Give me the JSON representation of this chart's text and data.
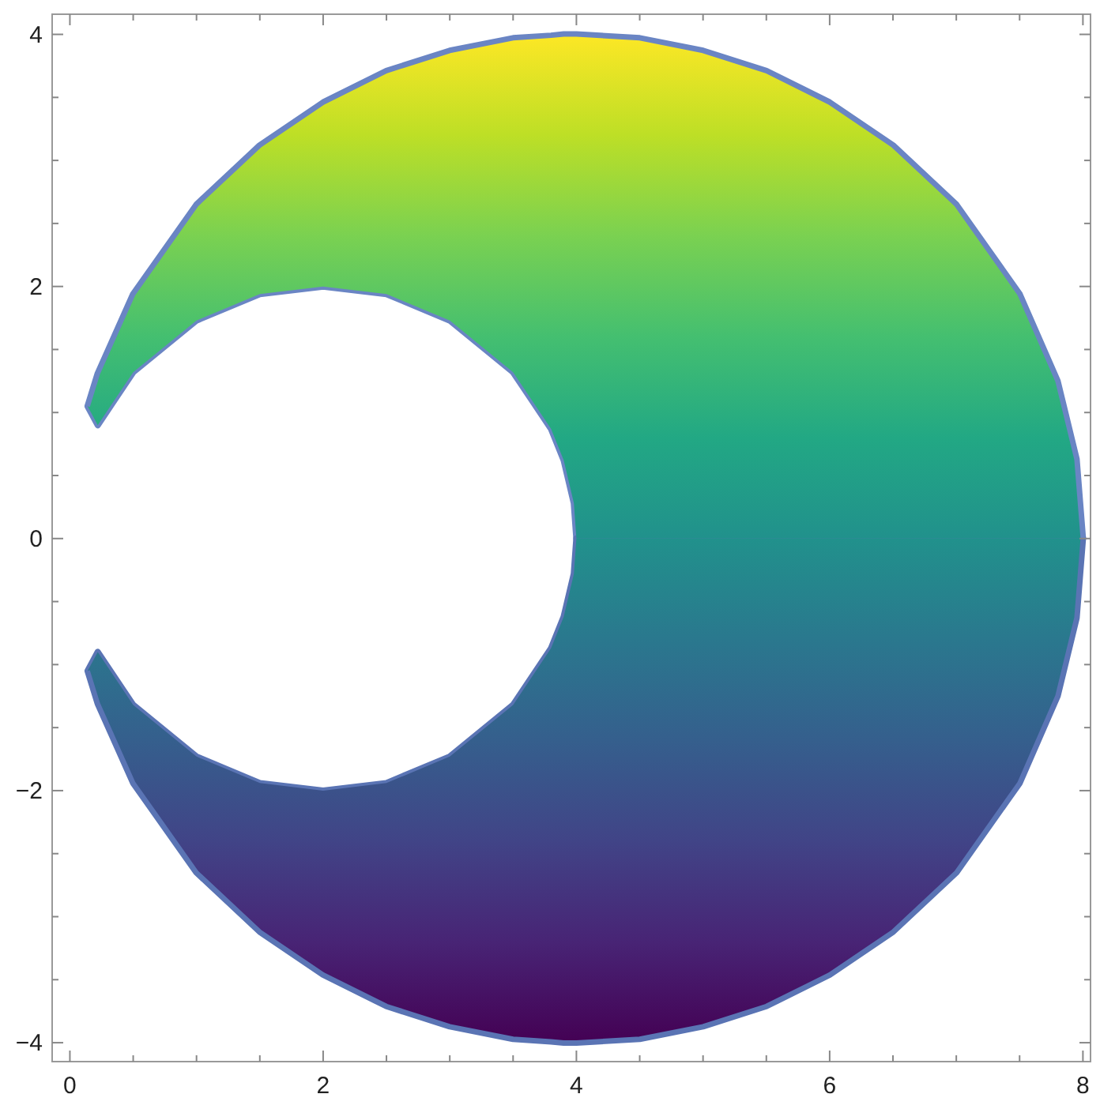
{
  "chart_data": {
    "type": "line",
    "x": [
      0.14,
      0.22,
      0.5,
      1,
      1.5,
      2,
      2.5,
      3,
      3.5,
      3.8,
      3.9,
      3.98,
      4,
      4.5,
      5,
      5.5,
      6,
      6.5,
      7,
      7.5,
      7.8,
      7.95,
      8
    ],
    "series": [
      {
        "color": "#6a85c4",
        "values": [
          1.05,
          1.31,
          1.94,
          2.65,
          3.12,
          3.46,
          3.71,
          3.87,
          3.97,
          3.99,
          4,
          4,
          4,
          3.97,
          3.87,
          3.71,
          3.46,
          3.12,
          2.65,
          1.94,
          1.25,
          0.63,
          0
        ],
        "upper": [
          1.05,
          1.31,
          1.94,
          2.65,
          3.12,
          3.46,
          3.71,
          3.87,
          3.97,
          3.99,
          4,
          4,
          4,
          3.97,
          3.87,
          3.71,
          3.46,
          3.12,
          2.65,
          1.94,
          1.25,
          0.63,
          0
        ],
        "lower": [
          1.05,
          0.9,
          1.32,
          1.73,
          1.94,
          2,
          1.94,
          1.73,
          1.32,
          0.87,
          0.62,
          0.28,
          0,
          0,
          0,
          0,
          0,
          0,
          0,
          0,
          0,
          0,
          0
        ]
      },
      {
        "color": "#5a74b4",
        "values": [
          -1.05,
          -1.31,
          -1.94,
          -2.65,
          -3.12,
          -3.46,
          -3.71,
          -3.87,
          -3.97,
          -3.99,
          -4,
          -4,
          -4,
          -3.97,
          -3.87,
          -3.71,
          -3.46,
          -3.12,
          -2.65,
          -1.94,
          -1.25,
          -0.63,
          0
        ],
        "upper": [
          -1.05,
          -1.31,
          -1.94,
          -2.65,
          -3.12,
          -3.46,
          -3.71,
          -3.87,
          -3.97,
          -3.99,
          -4,
          -4,
          -4,
          -3.97,
          -3.87,
          -3.71,
          -3.46,
          -3.12,
          -2.65,
          -1.94,
          -1.25,
          -0.63,
          0
        ],
        "lower": [
          -1.05,
          -0.9,
          -1.32,
          -1.73,
          -1.94,
          -2,
          -1.94,
          -1.73,
          -1.32,
          -0.87,
          -0.62,
          -0.28,
          0,
          0,
          0,
          0,
          0,
          0,
          0,
          0,
          0,
          0,
          0
        ]
      }
    ],
    "xlim": [
      -0.14,
      8.06
    ],
    "ylim": [
      -4.15,
      4.16
    ],
    "xticks": [
      0,
      {
        "value": 0.5,
        "label": null
      },
      {
        "value": 1,
        "label": null
      },
      {
        "value": 1.5,
        "label": null
      },
      2,
      {
        "value": 2.5,
        "label": null
      },
      {
        "value": 3,
        "label": null
      },
      {
        "value": 3.5,
        "label": null
      },
      4,
      {
        "value": 4.5,
        "label": null
      },
      {
        "value": 5,
        "label": null
      },
      {
        "value": 5.5,
        "label": null
      },
      6,
      {
        "value": 6.5,
        "label": null
      },
      {
        "value": 7,
        "label": null
      },
      {
        "value": 7.5,
        "label": null
      },
      8
    ],
    "yticks": [
      {
        "value": -4,
        "label": "−4"
      },
      {
        "value": -3.5,
        "label": null
      },
      {
        "value": -3,
        "label": null
      },
      {
        "value": -2.5,
        "label": null
      },
      {
        "value": -2,
        "label": "−2"
      },
      {
        "value": -1.5,
        "label": null
      },
      {
        "value": -1,
        "label": null
      },
      {
        "value": -0.5,
        "label": null
      },
      0,
      {
        "value": 0.5,
        "label": null
      },
      {
        "value": 1,
        "label": null
      },
      {
        "value": 1.5,
        "label": null
      },
      2,
      {
        "value": 2.5,
        "label": null
      },
      {
        "value": 3,
        "label": null
      },
      {
        "value": 3.5,
        "label": null
      },
      4
    ]
  }
}
